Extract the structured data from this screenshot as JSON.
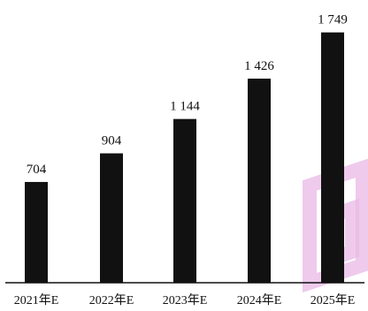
{
  "chart_data": {
    "type": "bar",
    "title": "",
    "xlabel": "",
    "ylabel": "",
    "categories": [
      "2021年E",
      "2022年E",
      "2023年E",
      "2024年E",
      "2025年E"
    ],
    "values": [
      704,
      904,
      1144,
      1426,
      1749
    ],
    "value_labels": [
      "704",
      "904",
      "1 144",
      "1 426",
      "1 749"
    ],
    "ylim": [
      0,
      1800
    ],
    "grid": false,
    "legend": "none",
    "bar_color": "#111111"
  }
}
